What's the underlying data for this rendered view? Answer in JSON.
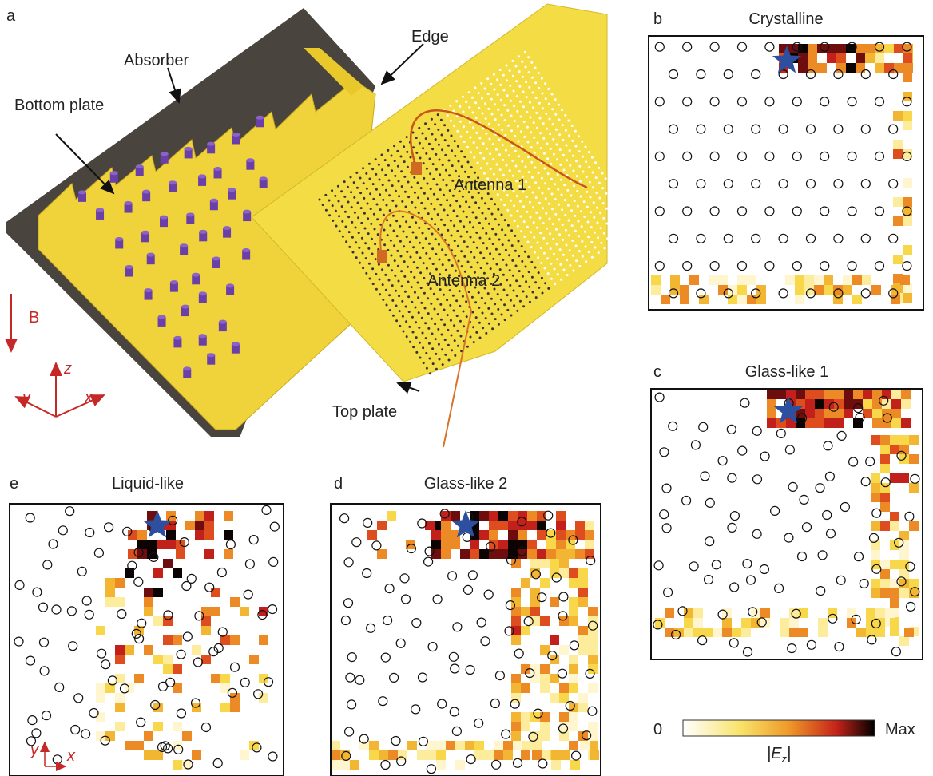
{
  "panel_a": {
    "label": "a",
    "annotations": {
      "absorber": "Absorber",
      "edge": "Edge",
      "bottom_plate": "Bottom plate",
      "antenna_1": "Antenna 1",
      "antenna_2": "Antenna 2",
      "top_plate": "Top plate",
      "field": "B"
    },
    "axes": {
      "z": "z",
      "y": "y",
      "x": "x"
    }
  },
  "panels": [
    {
      "label": "b",
      "title": "Crystalline"
    },
    {
      "label": "c",
      "title": "Glass-like 1"
    },
    {
      "label": "d",
      "title": "Glass-like 2"
    },
    {
      "label": "e",
      "title": "Liquid-like",
      "axes": {
        "y": "y",
        "x": "x"
      }
    }
  ],
  "colorbar": {
    "min_label": "0",
    "max_label": "Max",
    "quantity": [
      "|E",
      "z",
      "|"
    ]
  }
}
